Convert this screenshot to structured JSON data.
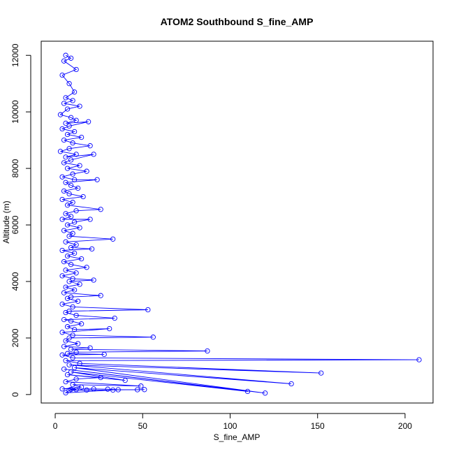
{
  "chart_data": {
    "type": "scatter",
    "title": "ATOM2 Southbound S_fine_AMP",
    "xlabel": "S_fine_AMP",
    "ylabel": "Altitude (m)",
    "xlim": [
      -8,
      216
    ],
    "ylim": [
      -300,
      12500
    ],
    "x_ticks": [
      0,
      50,
      100,
      150,
      200
    ],
    "y_ticks": [
      0,
      2000,
      4000,
      6000,
      8000,
      10000,
      12000
    ],
    "grid": false,
    "legend": "none",
    "series": [
      {
        "color": "#0000ff",
        "style": "line+points",
        "points": [
          [
            6,
            12000
          ],
          [
            9,
            11900
          ],
          [
            5,
            11800
          ],
          [
            12,
            11500
          ],
          [
            4,
            11300
          ],
          [
            8,
            11000
          ],
          [
            11,
            10700
          ],
          [
            6,
            10500
          ],
          [
            10,
            10400
          ],
          [
            5,
            10300
          ],
          [
            14,
            10200
          ],
          [
            7,
            10100
          ],
          [
            3,
            9900
          ],
          [
            9,
            9800
          ],
          [
            12,
            9700
          ],
          [
            6,
            9600
          ],
          [
            19,
            9650
          ],
          [
            8,
            9500
          ],
          [
            4,
            9400
          ],
          [
            11,
            9300
          ],
          [
            7,
            9200
          ],
          [
            15,
            9100
          ],
          [
            5,
            9000
          ],
          [
            10,
            8900
          ],
          [
            20,
            8800
          ],
          [
            8,
            8700
          ],
          [
            3,
            8600
          ],
          [
            12,
            8500
          ],
          [
            6,
            8400
          ],
          [
            22,
            8500
          ],
          [
            9,
            8300
          ],
          [
            5,
            8200
          ],
          [
            14,
            8100
          ],
          [
            7,
            8000
          ],
          [
            18,
            7900
          ],
          [
            10,
            7800
          ],
          [
            4,
            7700
          ],
          [
            11,
            7600
          ],
          [
            24,
            7600
          ],
          [
            6,
            7500
          ],
          [
            9,
            7400
          ],
          [
            13,
            7300
          ],
          [
            5,
            7200
          ],
          [
            8,
            7100
          ],
          [
            16,
            7000
          ],
          [
            4,
            6900
          ],
          [
            10,
            6800
          ],
          [
            7,
            6700
          ],
          [
            26,
            6550
          ],
          [
            12,
            6500
          ],
          [
            6,
            6400
          ],
          [
            9,
            6300
          ],
          [
            4,
            6200
          ],
          [
            20,
            6200
          ],
          [
            11,
            6100
          ],
          [
            7,
            6000
          ],
          [
            14,
            5900
          ],
          [
            5,
            5800
          ],
          [
            10,
            5700
          ],
          [
            8,
            5600
          ],
          [
            33,
            5500
          ],
          [
            6,
            5400
          ],
          [
            12,
            5300
          ],
          [
            9,
            5200
          ],
          [
            21,
            5150
          ],
          [
            4,
            5100
          ],
          [
            11,
            5000
          ],
          [
            7,
            4900
          ],
          [
            15,
            4800
          ],
          [
            5,
            4700
          ],
          [
            9,
            4600
          ],
          [
            18,
            4500
          ],
          [
            6,
            4400
          ],
          [
            12,
            4300
          ],
          [
            4,
            4200
          ],
          [
            10,
            4100
          ],
          [
            22,
            4050
          ],
          [
            8,
            4000
          ],
          [
            14,
            3900
          ],
          [
            6,
            3800
          ],
          [
            11,
            3700
          ],
          [
            5,
            3600
          ],
          [
            26,
            3500
          ],
          [
            9,
            3450
          ],
          [
            7,
            3400
          ],
          [
            13,
            3300
          ],
          [
            4,
            3200
          ],
          [
            10,
            3100
          ],
          [
            53,
            3000
          ],
          [
            8,
            2950
          ],
          [
            6,
            2900
          ],
          [
            12,
            2800
          ],
          [
            34,
            2700
          ],
          [
            5,
            2650
          ],
          [
            9,
            2600
          ],
          [
            15,
            2500
          ],
          [
            7,
            2400
          ],
          [
            11,
            2300
          ],
          [
            31,
            2330
          ],
          [
            4,
            2200
          ],
          [
            10,
            2100
          ],
          [
            56,
            2030
          ],
          [
            8,
            2000
          ],
          [
            6,
            1900
          ],
          [
            13,
            1800
          ],
          [
            5,
            1700
          ],
          [
            20,
            1650
          ],
          [
            9,
            1600
          ],
          [
            87,
            1540
          ],
          [
            12,
            1500
          ],
          [
            7,
            1450
          ],
          [
            28,
            1420
          ],
          [
            4,
            1400
          ],
          [
            10,
            1300
          ],
          [
            208,
            1230
          ],
          [
            6,
            1200
          ],
          [
            14,
            1100
          ],
          [
            152,
            760
          ],
          [
            8,
            1050
          ],
          [
            135,
            380
          ],
          [
            11,
            950
          ],
          [
            120,
            50
          ],
          [
            5,
            900
          ],
          [
            110,
            110
          ],
          [
            9,
            800
          ],
          [
            40,
            500
          ],
          [
            7,
            700
          ],
          [
            26,
            600
          ],
          [
            12,
            550
          ],
          [
            6,
            450
          ],
          [
            49,
            300
          ],
          [
            10,
            350
          ],
          [
            15,
            260
          ],
          [
            4,
            200
          ],
          [
            22,
            200
          ],
          [
            30,
            190
          ],
          [
            36,
            170
          ],
          [
            47,
            170
          ],
          [
            51,
            175
          ],
          [
            8,
            150
          ],
          [
            18,
            160
          ],
          [
            33,
            160
          ],
          [
            6,
            60
          ],
          [
            9,
            180
          ],
          [
            12,
            175
          ]
        ]
      }
    ]
  }
}
